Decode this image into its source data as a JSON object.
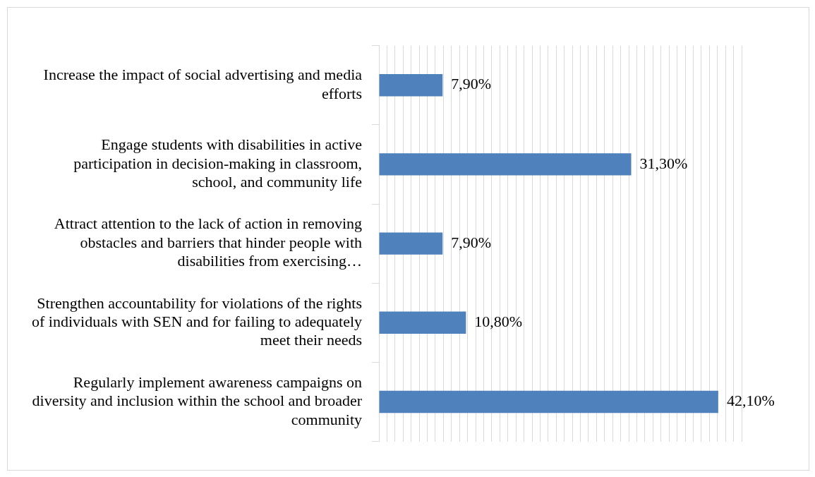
{
  "chart_data": {
    "type": "bar",
    "orientation": "horizontal",
    "categories": [
      "Increase the impact of social advertising and media efforts",
      "Engage students with disabilities in active participation in decision-making in classroom, school, and community life",
      "Attract attention to the lack of action in removing obstacles and barriers that hinder people with disabilities from exercising…",
      "Strengthen accountability for violations of the rights of individuals with SEN and for failing to adequately meet their needs",
      "Regularly implement awareness campaigns on diversity and inclusion within the school and broader community"
    ],
    "values": [
      7.9,
      31.3,
      7.9,
      10.8,
      42.1
    ],
    "value_labels": [
      "7,90%",
      "31,30%",
      "7,90%",
      "10,80%",
      "42,10%"
    ],
    "color": "#4f81bd",
    "xlim": [
      0,
      45
    ],
    "xticks": [
      {
        "value": 0,
        "label": null
      },
      {
        "value": 1,
        "label": null
      },
      {
        "value": 2,
        "label": null
      },
      {
        "value": 3,
        "label": null
      },
      {
        "value": 4,
        "label": null
      },
      {
        "value": 5,
        "label": null
      },
      {
        "value": 6,
        "label": null
      },
      {
        "value": 7,
        "label": null
      },
      {
        "value": 8,
        "label": null
      },
      {
        "value": 9,
        "label": null
      },
      {
        "value": 10,
        "label": null
      },
      {
        "value": 11,
        "label": null
      },
      {
        "value": 12,
        "label": null
      },
      {
        "value": 13,
        "label": null
      },
      {
        "value": 14,
        "label": null
      },
      {
        "value": 15,
        "label": null
      },
      {
        "value": 16,
        "label": null
      },
      {
        "value": 17,
        "label": null
      },
      {
        "value": 18,
        "label": null
      },
      {
        "value": 19,
        "label": null
      },
      {
        "value": 20,
        "label": null
      },
      {
        "value": 21,
        "label": null
      },
      {
        "value": 22,
        "label": null
      },
      {
        "value": 23,
        "label": null
      },
      {
        "value": 24,
        "label": null
      },
      {
        "value": 25,
        "label": null
      },
      {
        "value": 26,
        "label": null
      },
      {
        "value": 27,
        "label": null
      },
      {
        "value": 28,
        "label": null
      },
      {
        "value": 29,
        "label": null
      },
      {
        "value": 30,
        "label": null
      },
      {
        "value": 31,
        "label": null
      },
      {
        "value": 32,
        "label": null
      },
      {
        "value": 33,
        "label": null
      },
      {
        "value": 34,
        "label": null
      },
      {
        "value": 35,
        "label": null
      },
      {
        "value": 36,
        "label": null
      },
      {
        "value": 37,
        "label": null
      },
      {
        "value": 38,
        "label": null
      },
      {
        "value": 39,
        "label": null
      },
      {
        "value": 40,
        "label": null
      },
      {
        "value": 41,
        "label": null
      },
      {
        "value": 42,
        "label": null
      },
      {
        "value": 43,
        "label": null
      },
      {
        "value": 44,
        "label": null
      },
      {
        "value": 45,
        "label": null
      }
    ],
    "grid": "x",
    "tick_labels": "y",
    "legend": false
  }
}
